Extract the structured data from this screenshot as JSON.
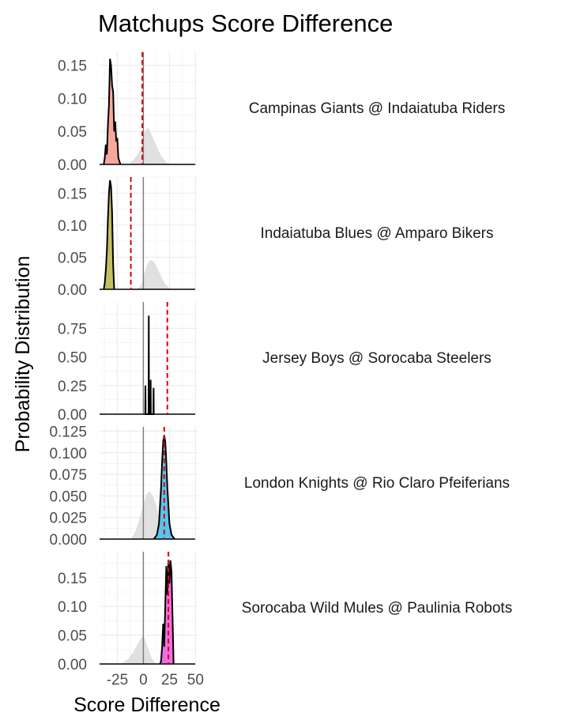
{
  "chart_data": {
    "type": "area",
    "title": "Matchups Score Difference",
    "xlabel": "Score Difference",
    "ylabel": "Probability Distribution",
    "xlim": [
      -42,
      52
    ],
    "x_ticks": [
      -25,
      0,
      25,
      50
    ],
    "x_tick_labels": [
      "-25",
      "0",
      "25",
      "50"
    ],
    "grid": true,
    "background_density_color": "#e0e0e0",
    "expected_line_color": "#dd0000",
    "facets": [
      {
        "label": "Campinas Giants @ Indaiatuba Riders",
        "fill": "#f8a79c",
        "ylim": [
          0,
          0.17
        ],
        "y_ticks": [
          0,
          0.05,
          0.1,
          0.15
        ],
        "y_tick_labels": [
          "0.00",
          "0.05",
          "0.10",
          "0.15"
        ],
        "expected_value": -1,
        "background": {
          "x": [
            -14,
            -8,
            -3,
            0,
            3,
            5,
            8,
            12,
            17,
            22,
            28
          ],
          "y": [
            0,
            0.01,
            0.022,
            0.046,
            0.054,
            0.055,
            0.045,
            0.03,
            0.013,
            0.003,
            0
          ]
        },
        "density": {
          "x": [
            -38,
            -37,
            -36,
            -35,
            -34,
            -33,
            -32,
            -31,
            -30,
            -29,
            -28,
            -27,
            -26,
            -25,
            -24,
            -23,
            -22
          ],
          "y": [
            0,
            0.01,
            0.03,
            0.015,
            0.06,
            0.09,
            0.16,
            0.15,
            0.12,
            0.11,
            0.05,
            0.065,
            0.035,
            0.04,
            0.01,
            0.005,
            0
          ]
        }
      },
      {
        "label": "Indaiatuba Blues @ Amparo Bikers",
        "fill": "#c4bf62",
        "ylim": [
          0,
          0.175
        ],
        "y_ticks": [
          0,
          0.05,
          0.1,
          0.15
        ],
        "y_tick_labels": [
          "0.00",
          "0.05",
          "0.10",
          "0.15"
        ],
        "expected_value": -12,
        "background": {
          "x": [
            -6,
            -2,
            1,
            4,
            7,
            10,
            13,
            17,
            21,
            27
          ],
          "y": [
            0,
            0.008,
            0.025,
            0.04,
            0.046,
            0.043,
            0.035,
            0.02,
            0.008,
            0
          ]
        },
        "density": {
          "x": [
            -38,
            -37,
            -36,
            -35,
            -34,
            -33,
            -32,
            -31,
            -30,
            -29,
            -28
          ],
          "y": [
            0,
            0.01,
            0.03,
            0.06,
            0.11,
            0.15,
            0.17,
            0.16,
            0.12,
            0.04,
            0
          ]
        }
      },
      {
        "label": "Jersey Boys @ Sorocaba Steelers",
        "fill": "#20c090",
        "ylim": [
          0,
          0.98
        ],
        "y_ticks": [
          0,
          0.25,
          0.5,
          0.75
        ],
        "y_tick_labels": [
          "0.00",
          "0.25",
          "0.50",
          "0.75"
        ],
        "expected_value": 23,
        "background": {
          "x": [],
          "y": []
        },
        "density": {
          "x": [
            1.8,
            2,
            2.2,
            5,
            5.2,
            5.4,
            6.8,
            7,
            7.2,
            9.6,
            9.8,
            10
          ],
          "y": [
            0,
            0.25,
            0,
            0,
            0.86,
            0,
            0,
            0.3,
            0,
            0,
            0.23,
            0
          ]
        }
      },
      {
        "label": "London Knights @ Rio Claro Pfeiferians",
        "fill": "#58c4f0",
        "ylim": [
          0,
          0.13
        ],
        "y_ticks": [
          0,
          0.025,
          0.05,
          0.075,
          0.1,
          0.125
        ],
        "y_tick_labels": [
          "0.000",
          "0.025",
          "0.050",
          "0.075",
          "0.100",
          "0.125"
        ],
        "expected_value": 20,
        "background": {
          "x": [
            -12,
            -8,
            -4,
            0,
            3,
            6,
            9,
            12,
            15,
            18,
            22,
            27
          ],
          "y": [
            0,
            0.008,
            0.022,
            0.04,
            0.052,
            0.055,
            0.05,
            0.04,
            0.028,
            0.016,
            0.005,
            0
          ]
        },
        "density": {
          "x": [
            10,
            13,
            15,
            17,
            18,
            19,
            20,
            21,
            22,
            23,
            25,
            27,
            30
          ],
          "y": [
            0,
            0.005,
            0.018,
            0.06,
            0.09,
            0.113,
            0.12,
            0.113,
            0.09,
            0.06,
            0.018,
            0.005,
            0
          ]
        }
      },
      {
        "label": "Sorocaba Wild Mules @ Paulinia Robots",
        "fill": "#f070e0",
        "ylim": [
          0,
          0.195
        ],
        "y_ticks": [
          0,
          0.05,
          0.1,
          0.15
        ],
        "y_tick_labels": [
          "0.00",
          "0.05",
          "0.10",
          "0.15"
        ],
        "expected_value": 24,
        "background": {
          "x": [
            -22,
            -15,
            -10,
            -6,
            -3,
            -1,
            1,
            4,
            8,
            12
          ],
          "y": [
            0,
            0.008,
            0.02,
            0.033,
            0.043,
            0.048,
            0.046,
            0.03,
            0.01,
            0
          ]
        },
        "density": {
          "x": [
            16,
            17,
            18,
            19,
            20,
            21,
            22,
            23,
            24,
            25,
            26,
            27,
            28,
            29
          ],
          "y": [
            0,
            0.005,
            0.03,
            0.07,
            0.03,
            0.1,
            0.17,
            0.12,
            0.18,
            0.14,
            0.18,
            0.16,
            0.08,
            0
          ]
        }
      }
    ]
  }
}
